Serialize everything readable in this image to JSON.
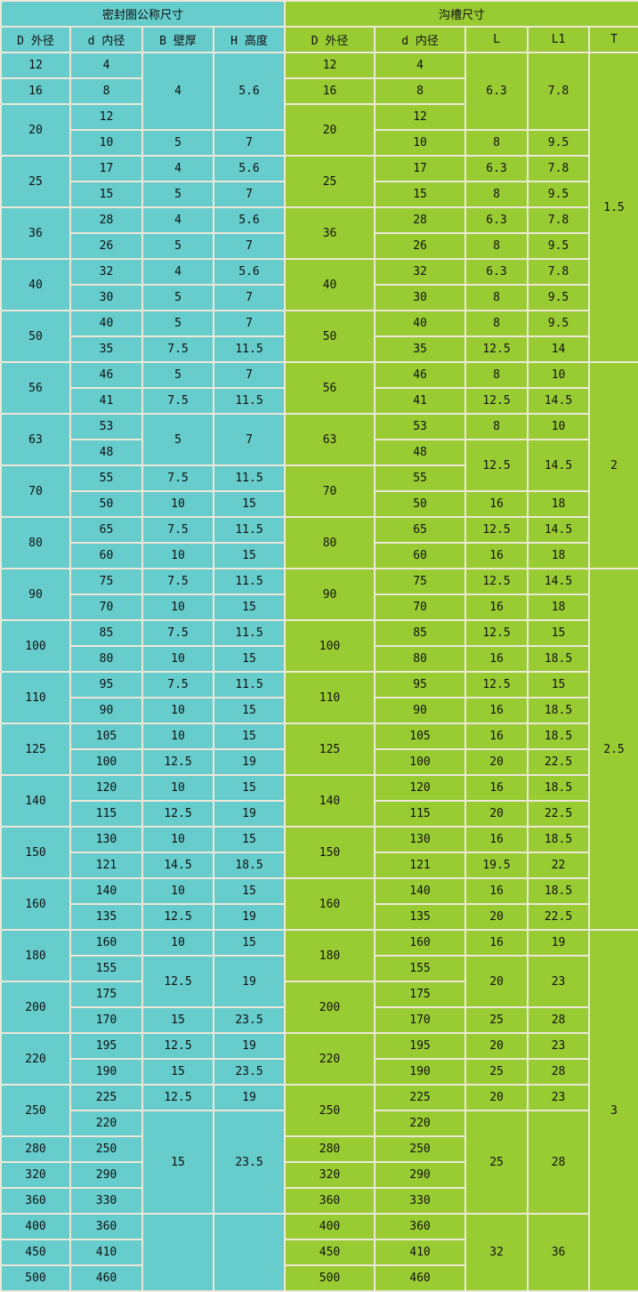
{
  "colors": {
    "seal": "#66cccc",
    "groove": "#99cc33",
    "border": "#ede8d8"
  },
  "header": {
    "seal_title": "密封圈公称尺寸",
    "groove_title": "沟槽尺寸",
    "seal_columns": [
      "D 外径",
      "d 内径",
      "B 壁厚",
      "H 高度"
    ],
    "groove_columns": [
      "D 外径",
      "d 内径",
      "L",
      "L1",
      "T"
    ]
  },
  "rows": [
    {
      "seal": [
        "12",
        "4",
        [
          "4",
          3
        ],
        [
          "5.6",
          3
        ]
      ],
      "groove": [
        "12",
        "4",
        [
          "6.3",
          3
        ],
        [
          "7.8",
          3
        ],
        [
          "1.5",
          12
        ]
      ]
    },
    {
      "seal": [
        "16",
        "8"
      ],
      "groove": [
        "16",
        "8"
      ]
    },
    {
      "seal": [
        [
          "20",
          2
        ],
        "12"
      ],
      "groove": [
        [
          "20",
          2
        ],
        "12"
      ]
    },
    {
      "seal": [
        "10",
        "5",
        "7"
      ],
      "groove": [
        "10",
        "8",
        "9.5"
      ]
    },
    {
      "seal": [
        [
          "25",
          2
        ],
        "17",
        "4",
        "5.6"
      ],
      "groove": [
        [
          "25",
          2
        ],
        "17",
        "6.3",
        "7.8"
      ]
    },
    {
      "seal": [
        "15",
        "5",
        "7"
      ],
      "groove": [
        "15",
        "8",
        "9.5"
      ]
    },
    {
      "seal": [
        [
          "36",
          2
        ],
        "28",
        "4",
        "5.6"
      ],
      "groove": [
        [
          "36",
          2
        ],
        "28",
        "6.3",
        "7.8"
      ]
    },
    {
      "seal": [
        "26",
        "5",
        "7"
      ],
      "groove": [
        "26",
        "8",
        "9.5"
      ]
    },
    {
      "seal": [
        [
          "40",
          2
        ],
        "32",
        "4",
        "5.6"
      ],
      "groove": [
        [
          "40",
          2
        ],
        "32",
        "6.3",
        "7.8"
      ]
    },
    {
      "seal": [
        "30",
        "5",
        "7"
      ],
      "groove": [
        "30",
        "8",
        "9.5"
      ]
    },
    {
      "seal": [
        [
          "50",
          2
        ],
        "40",
        "5",
        "7"
      ],
      "groove": [
        [
          "50",
          2
        ],
        "40",
        "8",
        "9.5"
      ]
    },
    {
      "seal": [
        "35",
        "7.5",
        "11.5"
      ],
      "groove": [
        "35",
        "12.5",
        "14"
      ]
    },
    {
      "seal": [
        [
          "56",
          2
        ],
        "46",
        "5",
        "7"
      ],
      "groove": [
        [
          "56",
          2
        ],
        "46",
        "8",
        "10",
        [
          "2",
          8
        ]
      ]
    },
    {
      "seal": [
        "41",
        "7.5",
        "11.5"
      ],
      "groove": [
        "41",
        "12.5",
        "14.5"
      ]
    },
    {
      "seal": [
        [
          "63",
          2
        ],
        "53",
        [
          "5",
          2
        ],
        [
          "7",
          2
        ]
      ],
      "groove": [
        [
          "63",
          2
        ],
        "53",
        "8",
        "10"
      ]
    },
    {
      "seal": [
        "48"
      ],
      "groove": [
        "48",
        [
          "12.5",
          2
        ],
        [
          "14.5",
          2
        ]
      ]
    },
    {
      "seal": [
        [
          "70",
          2
        ],
        "55",
        "7.5",
        "11.5"
      ],
      "groove": [
        [
          "70",
          2
        ],
        "55"
      ]
    },
    {
      "seal": [
        "50",
        "10",
        "15"
      ],
      "groove": [
        "50",
        "16",
        "18"
      ]
    },
    {
      "seal": [
        [
          "80",
          2
        ],
        "65",
        "7.5",
        "11.5"
      ],
      "groove": [
        [
          "80",
          2
        ],
        "65",
        "12.5",
        "14.5"
      ]
    },
    {
      "seal": [
        "60",
        "10",
        "15"
      ],
      "groove": [
        "60",
        "16",
        "18"
      ]
    },
    {
      "seal": [
        [
          "90",
          2
        ],
        "75",
        "7.5",
        "11.5"
      ],
      "groove": [
        [
          "90",
          2
        ],
        "75",
        "12.5",
        "14.5",
        [
          "2.5",
          14
        ]
      ]
    },
    {
      "seal": [
        "70",
        "10",
        "15"
      ],
      "groove": [
        "70",
        "16",
        "18"
      ]
    },
    {
      "seal": [
        [
          "100",
          2
        ],
        "85",
        "7.5",
        "11.5"
      ],
      "groove": [
        [
          "100",
          2
        ],
        "85",
        "12.5",
        "15"
      ]
    },
    {
      "seal": [
        "80",
        "10",
        "15"
      ],
      "groove": [
        "80",
        "16",
        "18.5"
      ]
    },
    {
      "seal": [
        [
          "110",
          2
        ],
        "95",
        "7.5",
        "11.5"
      ],
      "groove": [
        [
          "110",
          2
        ],
        "95",
        "12.5",
        "15"
      ]
    },
    {
      "seal": [
        "90",
        "10",
        "15"
      ],
      "groove": [
        "90",
        "16",
        "18.5"
      ]
    },
    {
      "seal": [
        [
          "125",
          2
        ],
        "105",
        "10",
        "15"
      ],
      "groove": [
        [
          "125",
          2
        ],
        "105",
        "16",
        "18.5"
      ]
    },
    {
      "seal": [
        "100",
        "12.5",
        "19"
      ],
      "groove": [
        "100",
        "20",
        "22.5"
      ]
    },
    {
      "seal": [
        [
          "140",
          2
        ],
        "120",
        "10",
        "15"
      ],
      "groove": [
        [
          "140",
          2
        ],
        "120",
        "16",
        "18.5"
      ]
    },
    {
      "seal": [
        "115",
        "12.5",
        "19"
      ],
      "groove": [
        "115",
        "20",
        "22.5"
      ]
    },
    {
      "seal": [
        [
          "150",
          2
        ],
        "130",
        "10",
        "15"
      ],
      "groove": [
        [
          "150",
          2
        ],
        "130",
        "16",
        "18.5"
      ]
    },
    {
      "seal": [
        "121",
        "14.5",
        "18.5"
      ],
      "groove": [
        "121",
        "19.5",
        "22"
      ]
    },
    {
      "seal": [
        [
          "160",
          2
        ],
        "140",
        "10",
        "15"
      ],
      "groove": [
        [
          "160",
          2
        ],
        "140",
        "16",
        "18.5"
      ]
    },
    {
      "seal": [
        "135",
        "12.5",
        "19"
      ],
      "groove": [
        "135",
        "20",
        "22.5"
      ]
    },
    {
      "seal": [
        [
          "180",
          2
        ],
        "160",
        "10",
        "15"
      ],
      "groove": [
        [
          "180",
          2
        ],
        "160",
        "16",
        "19",
        [
          "3",
          14
        ]
      ]
    },
    {
      "seal": [
        "155",
        [
          "12.5",
          2
        ],
        [
          "19",
          2
        ]
      ],
      "groove": [
        "155",
        [
          "20",
          2
        ],
        [
          "23",
          2
        ]
      ]
    },
    {
      "seal": [
        [
          "200",
          2
        ],
        "175"
      ],
      "groove": [
        [
          "200",
          2
        ],
        "175"
      ]
    },
    {
      "seal": [
        "170",
        "15",
        "23.5"
      ],
      "groove": [
        "170",
        "25",
        "28"
      ]
    },
    {
      "seal": [
        [
          "220",
          2
        ],
        "195",
        "12.5",
        "19"
      ],
      "groove": [
        [
          "220",
          2
        ],
        "195",
        "20",
        "23"
      ]
    },
    {
      "seal": [
        "190",
        "15",
        "23.5"
      ],
      "groove": [
        "190",
        "25",
        "28"
      ]
    },
    {
      "seal": [
        [
          "250",
          2
        ],
        "225",
        "12.5",
        "19"
      ],
      "groove": [
        [
          "250",
          2
        ],
        "225",
        "20",
        "23"
      ]
    },
    {
      "seal": [
        "220",
        [
          "15",
          4
        ],
        [
          "23.5",
          4
        ]
      ],
      "groove": [
        "220",
        [
          "25",
          4
        ],
        [
          "28",
          4
        ]
      ]
    },
    {
      "seal": [
        "280",
        "250"
      ],
      "groove": [
        "280",
        "250"
      ]
    },
    {
      "seal": [
        "320",
        "290"
      ],
      "groove": [
        "320",
        "290"
      ]
    },
    {
      "seal": [
        "360",
        "330"
      ],
      "groove": [
        "360",
        "330"
      ]
    },
    {
      "seal": [
        "400",
        "360",
        [
          "",
          3
        ],
        [
          "",
          3
        ]
      ],
      "groove": [
        "400",
        "360",
        [
          "32",
          3
        ],
        [
          "36",
          3
        ]
      ]
    },
    {
      "seal": [
        "450",
        "410"
      ],
      "groove": [
        "450",
        "410"
      ]
    },
    {
      "seal": [
        "500",
        "460"
      ],
      "groove": [
        "500",
        "460"
      ]
    }
  ]
}
